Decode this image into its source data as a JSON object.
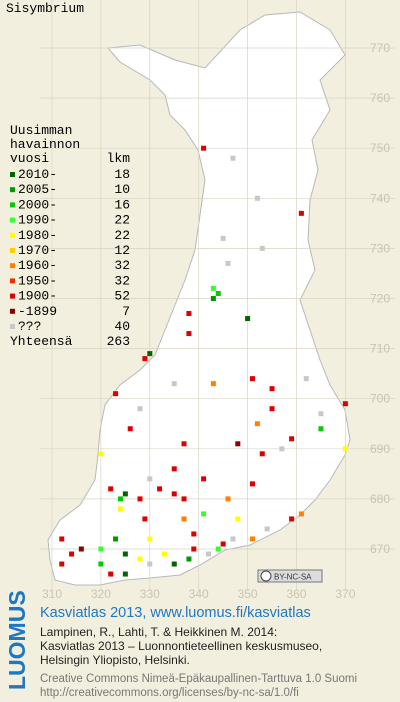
{
  "title": "Sisymbrium",
  "legend": {
    "heading": [
      "Uusimman",
      "havainnon",
      "vuosi"
    ],
    "count_heading": "lkm",
    "items": [
      {
        "label": "2010-",
        "count": 18,
        "color": "#006400"
      },
      {
        "label": "2005-",
        "count": 10,
        "color": "#009a00"
      },
      {
        "label": "2000-",
        "count": 16,
        "color": "#00cc00"
      },
      {
        "label": "1990-",
        "count": 22,
        "color": "#33ff33"
      },
      {
        "label": "1980-",
        "count": 22,
        "color": "#ffff00"
      },
      {
        "label": "1970-",
        "count": 12,
        "color": "#ffcc00"
      },
      {
        "label": "1960-",
        "count": 32,
        "color": "#ff8000"
      },
      {
        "label": "1950-",
        "count": 32,
        "color": "#ee3300"
      },
      {
        "label": "1900-",
        "count": 52,
        "color": "#dd0000"
      },
      {
        "label": "-1899",
        "count": 7,
        "color": "#8b0000"
      },
      {
        "label": "???",
        "count": 40,
        "color": "#c8c8c8"
      }
    ],
    "total_label": "Yhteensä",
    "total": 263
  },
  "grid": {
    "xticks": [
      310,
      320,
      330,
      340,
      350,
      360,
      370
    ],
    "yticks": [
      770,
      760,
      750,
      740,
      730,
      720,
      710,
      700,
      690,
      680,
      670
    ]
  },
  "records": [
    [
      341,
      750,
      8
    ],
    [
      347,
      748,
      10
    ],
    [
      352,
      740,
      10
    ],
    [
      361,
      737,
      8
    ],
    [
      345,
      732,
      10
    ],
    [
      353,
      730,
      10
    ],
    [
      346,
      727,
      10
    ],
    [
      343,
      722,
      3
    ],
    [
      344,
      721,
      2
    ],
    [
      343,
      720,
      1
    ],
    [
      338,
      717,
      8
    ],
    [
      350,
      716,
      0
    ],
    [
      338,
      713,
      8
    ],
    [
      330,
      709,
      0
    ],
    [
      329,
      708,
      8
    ],
    [
      335,
      703,
      10
    ],
    [
      343,
      703,
      6
    ],
    [
      351,
      704,
      8
    ],
    [
      355,
      702,
      8
    ],
    [
      362,
      704,
      10
    ],
    [
      323,
      701,
      8
    ],
    [
      328,
      698,
      10
    ],
    [
      355,
      698,
      8
    ],
    [
      365,
      697,
      10
    ],
    [
      370,
      699,
      8
    ],
    [
      352,
      695,
      6
    ],
    [
      365,
      694,
      2
    ],
    [
      326,
      694,
      8
    ],
    [
      337,
      691,
      8
    ],
    [
      348,
      691,
      9
    ],
    [
      359,
      692,
      8
    ],
    [
      357,
      690,
      10
    ],
    [
      370,
      690,
      4
    ],
    [
      320,
      689,
      4
    ],
    [
      353,
      689,
      8
    ],
    [
      330,
      684,
      10
    ],
    [
      341,
      684,
      8
    ],
    [
      351,
      683,
      8
    ],
    [
      322,
      682,
      8
    ],
    [
      325,
      681,
      0
    ],
    [
      332,
      682,
      8
    ],
    [
      335,
      681,
      8
    ],
    [
      337,
      680,
      8
    ],
    [
      346,
      680,
      6
    ],
    [
      361,
      677,
      6
    ],
    [
      359,
      676,
      8
    ],
    [
      324,
      678,
      4
    ],
    [
      329,
      676,
      8
    ],
    [
      337,
      676,
      6
    ],
    [
      341,
      677,
      3
    ],
    [
      348,
      676,
      4
    ],
    [
      330,
      672,
      4
    ],
    [
      339,
      673,
      8
    ],
    [
      345,
      671,
      8
    ],
    [
      351,
      672,
      6
    ],
    [
      312,
      672,
      8
    ],
    [
      314,
      669,
      8
    ],
    [
      316,
      670,
      9
    ],
    [
      320,
      670,
      3
    ],
    [
      323,
      672,
      1
    ],
    [
      325,
      669,
      0
    ],
    [
      325,
      665,
      0
    ],
    [
      328,
      668,
      4
    ],
    [
      330,
      667,
      10
    ],
    [
      333,
      669,
      4
    ],
    [
      335,
      667,
      0
    ],
    [
      338,
      668,
      1
    ],
    [
      339,
      670,
      8
    ],
    [
      342,
      669,
      10
    ],
    [
      344,
      670,
      3
    ],
    [
      312,
      667,
      8
    ],
    [
      322,
      665,
      8
    ],
    [
      320,
      667,
      2
    ],
    [
      347,
      672,
      10
    ],
    [
      354,
      674,
      10
    ],
    [
      335,
      686,
      8
    ],
    [
      324,
      680,
      2
    ],
    [
      328,
      680,
      8
    ]
  ],
  "badge": "BY-NC-SA",
  "footer": {
    "brand": "LUOMUS",
    "atlas": "Kasviatlas 2013, www.luomus.fi/kasviatlas",
    "citation": [
      "Lampinen, R., Lahti, T. & Heikkinen M. 2014:",
      "Kasviatlas 2013 – Luonnontieteellinen keskusmuseo,",
      "Helsingin Yliopisto, Helsinki."
    ],
    "license": [
      "Creative Commons Nimeä-Epäkaupallinen-Tarttuva 1.0 Suomi",
      "http://creativecommons.org/licenses/by-nc-sa/1.0/fi"
    ]
  }
}
